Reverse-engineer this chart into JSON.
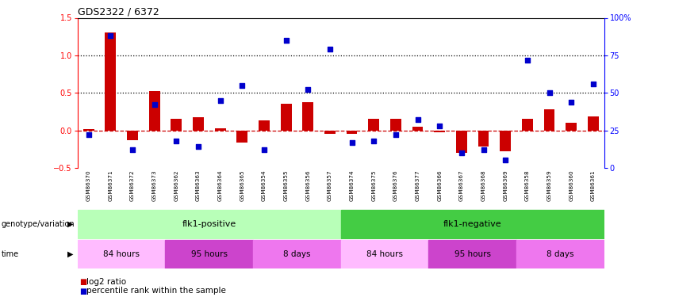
{
  "title": "GDS2322 / 6372",
  "samples": [
    "GSM86370",
    "GSM86371",
    "GSM86372",
    "GSM86373",
    "GSM86362",
    "GSM86363",
    "GSM86364",
    "GSM86365",
    "GSM86354",
    "GSM86355",
    "GSM86356",
    "GSM86357",
    "GSM86374",
    "GSM86375",
    "GSM86376",
    "GSM86377",
    "GSM86366",
    "GSM86367",
    "GSM86368",
    "GSM86369",
    "GSM86358",
    "GSM86359",
    "GSM86360",
    "GSM86361"
  ],
  "log2_ratio": [
    0.02,
    1.3,
    -0.13,
    0.52,
    0.15,
    0.17,
    0.03,
    -0.16,
    0.13,
    0.35,
    0.38,
    -0.05,
    -0.05,
    0.15,
    0.15,
    0.05,
    -0.03,
    -0.3,
    -0.22,
    -0.28,
    0.15,
    0.28,
    0.1,
    0.18
  ],
  "percentile_rank": [
    22,
    88,
    12,
    42,
    18,
    14,
    45,
    55,
    12,
    85,
    52,
    79,
    17,
    18,
    22,
    32,
    28,
    10,
    12,
    5,
    72,
    50,
    44,
    56
  ],
  "ylim_left": [
    -0.5,
    1.5
  ],
  "ylim_right": [
    0,
    100
  ],
  "yticks_left": [
    -0.5,
    0.0,
    0.5,
    1.0,
    1.5
  ],
  "yticks_right": [
    0,
    25,
    50,
    75,
    100
  ],
  "hlines": [
    0.5,
    1.0
  ],
  "bar_color": "#cc0000",
  "scatter_color": "#0000cc",
  "zero_line_color": "#cc0000",
  "bg_color": "#ffffff",
  "tick_bg_color": "#c8c8c8",
  "geno_positive_color": "#b8ffb8",
  "geno_negative_color": "#44cc44",
  "time_segments": [
    {
      "label": "84 hours",
      "start": 0,
      "end": 4,
      "color": "#ffbbff"
    },
    {
      "label": "95 hours",
      "start": 4,
      "end": 8,
      "color": "#cc44cc"
    },
    {
      "label": "8 days",
      "start": 8,
      "end": 12,
      "color": "#ee77ee"
    },
    {
      "label": "84 hours",
      "start": 12,
      "end": 16,
      "color": "#ffbbff"
    },
    {
      "label": "95 hours",
      "start": 16,
      "end": 20,
      "color": "#cc44cc"
    },
    {
      "label": "8 days",
      "start": 20,
      "end": 24,
      "color": "#ee77ee"
    }
  ],
  "genotype_label": "genotype/variation",
  "time_label": "time",
  "geno_positive_text": "flk1-positive",
  "geno_negative_text": "flk1-negative",
  "legend": [
    {
      "color": "#cc0000",
      "label": "log2 ratio"
    },
    {
      "color": "#0000cc",
      "label": "percentile rank within the sample"
    }
  ]
}
